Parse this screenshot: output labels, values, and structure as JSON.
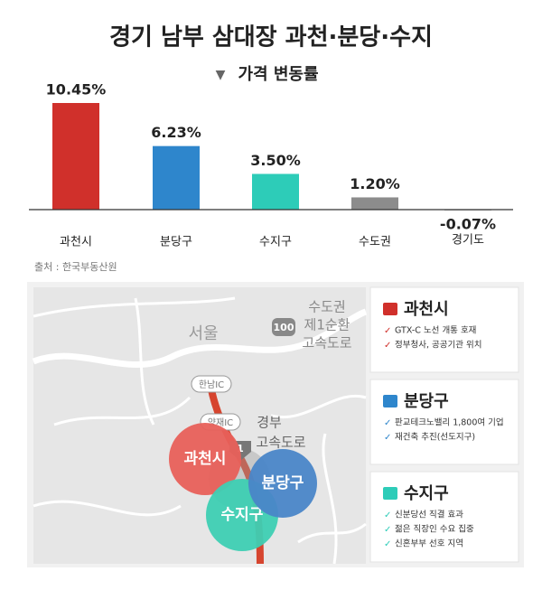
{
  "chart_data": {
    "type": "bar",
    "title": "경기 남부 삼대장 과천·분당·수지",
    "subtitle": "가격 변동률",
    "categories": [
      "과천시",
      "분당구",
      "수지구",
      "수도권",
      "경기도"
    ],
    "values": [
      10.45,
      6.23,
      3.5,
      1.2,
      -0.07
    ],
    "value_labels": [
      "10.45%",
      "6.23%",
      "3.50%",
      "1.20%",
      "-0.07%"
    ],
    "colors": [
      "#d0302b",
      "#2e86cc",
      "#2dccb8",
      "#8c8c8c",
      "#8c8c8c"
    ]
  },
  "source": "출처 : 한국부동산원",
  "map": {
    "seoul": "서울",
    "ring_road": [
      "수도권",
      "제1순환",
      "고속도로"
    ],
    "ring_road_number": "100",
    "hannam_ic": "한남IC",
    "yangjae_ic": "양재IC",
    "gyeongbu": [
      "경부",
      "고속도로"
    ],
    "gyeongbu_number": "1",
    "circles": [
      "과천시",
      "수지구",
      "분당구"
    ]
  },
  "cards": [
    {
      "title": "과천시",
      "items": [
        "GTX-C 노선 개통 호재",
        "정부청사, 공공기관 위치"
      ]
    },
    {
      "title": "분당구",
      "items": [
        "판교테크노밸리 1,800여 기업",
        "재건축 추진(선도지구)"
      ]
    },
    {
      "title": "수지구",
      "items": [
        "신분당선 직결 효과",
        "젊은 직장인 수요 집중",
        "신혼부부 선호 지역"
      ]
    }
  ]
}
